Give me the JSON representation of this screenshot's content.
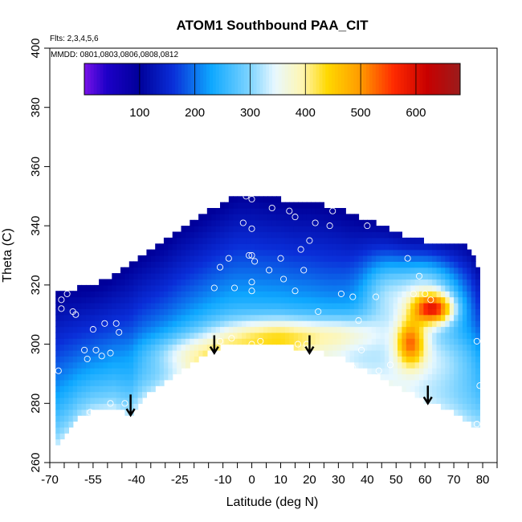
{
  "chart_data": {
    "type": "heatmap",
    "title": "ATOM1 Southbound PAA_CIT",
    "subtitle_flights": "Flts: 2,3,4,5,6",
    "subtitle_dates": "MMDD: 0801,0803,0806,0808,0812",
    "xlabel": "Latitude (deg N)",
    "ylabel": "Theta (C)",
    "xlim": [
      -70,
      85
    ],
    "ylim": [
      260,
      400
    ],
    "x_ticks": [
      -70,
      -55,
      -40,
      -25,
      -10,
      0,
      10,
      20,
      30,
      40,
      50,
      60,
      70,
      80
    ],
    "x_minor_ticks": [
      -65,
      -60,
      -50,
      -45,
      -35,
      -30,
      -20,
      -15,
      -5,
      5,
      15,
      25,
      35,
      45,
      55,
      65,
      75,
      85
    ],
    "y_ticks": [
      260,
      280,
      300,
      320,
      340,
      360,
      380,
      400
    ],
    "colorbar": {
      "range": [
        0,
        680
      ],
      "ticks": [
        100,
        200,
        300,
        400,
        500,
        600
      ],
      "stops": [
        {
          "v": 0,
          "c": "#7a12e8"
        },
        {
          "v": 40,
          "c": "#1d00c8"
        },
        {
          "v": 100,
          "c": "#00009a"
        },
        {
          "v": 160,
          "c": "#0a2ed8"
        },
        {
          "v": 230,
          "c": "#0ea8ff"
        },
        {
          "v": 300,
          "c": "#7fd4ff"
        },
        {
          "v": 345,
          "c": "#e8f8ff"
        },
        {
          "v": 395,
          "c": "#fff6b0"
        },
        {
          "v": 440,
          "c": "#ffd800"
        },
        {
          "v": 500,
          "c": "#ff9a00"
        },
        {
          "v": 560,
          "c": "#ff2a00"
        },
        {
          "v": 620,
          "c": "#c80000"
        },
        {
          "v": 680,
          "c": "#9b1c1c"
        }
      ]
    },
    "surface_boundary": [
      [
        -68,
        266
      ],
      [
        -64,
        270
      ],
      [
        -60,
        275
      ],
      [
        -55,
        278
      ],
      [
        -48,
        279
      ],
      [
        -42,
        276
      ],
      [
        -38,
        282
      ],
      [
        -30,
        287
      ],
      [
        -22,
        293
      ],
      [
        -14,
        298
      ],
      [
        -8,
        300
      ],
      [
        0,
        300
      ],
      [
        10,
        300
      ],
      [
        20,
        298
      ],
      [
        30,
        296
      ],
      [
        40,
        291
      ],
      [
        50,
        286
      ],
      [
        60,
        281
      ],
      [
        70,
        277
      ],
      [
        78,
        272
      ]
    ],
    "tropopause_boundary": [
      [
        -68,
        316
      ],
      [
        -65,
        318
      ],
      [
        -60,
        318
      ],
      [
        -55,
        319
      ],
      [
        -50,
        321
      ],
      [
        -45,
        324
      ],
      [
        -40,
        328
      ],
      [
        -35,
        331
      ],
      [
        -30,
        334
      ],
      [
        -25,
        338
      ],
      [
        -20,
        341
      ],
      [
        -15,
        344
      ],
      [
        -10,
        347
      ],
      [
        -5,
        350
      ],
      [
        0,
        350
      ],
      [
        5,
        349
      ],
      [
        10,
        348
      ],
      [
        15,
        347
      ],
      [
        20,
        347
      ],
      [
        25,
        346
      ],
      [
        30,
        345
      ],
      [
        35,
        343
      ],
      [
        40,
        341
      ],
      [
        45,
        339
      ],
      [
        50,
        337
      ],
      [
        55,
        335
      ],
      [
        60,
        334
      ],
      [
        65,
        333
      ],
      [
        70,
        333
      ],
      [
        75,
        332
      ],
      [
        79,
        324
      ]
    ],
    "features": [
      {
        "x": 63,
        "y": 312,
        "sx": 7,
        "sy": 5,
        "amp": 270
      },
      {
        "x": 55,
        "y": 301,
        "sx": 5,
        "sy": 8,
        "amp": 210
      },
      {
        "x": 60,
        "y": 318,
        "sx": 13,
        "sy": 12,
        "amp": 180
      },
      {
        "x": 62,
        "y": 296,
        "sx": 17,
        "sy": 11,
        "amp": 90
      },
      {
        "x": 10,
        "y": 303,
        "sx": 22,
        "sy": 6,
        "amp": 130
      },
      {
        "x": -20,
        "y": 297,
        "sx": 16,
        "sy": 6,
        "amp": 80
      },
      {
        "x": 45,
        "y": 318,
        "sx": 8,
        "sy": 14,
        "amp": 80
      },
      {
        "x": 35,
        "y": 304,
        "sx": 12,
        "sy": 6,
        "amp": 60
      }
    ],
    "obs_points": [
      [
        -67,
        291
      ],
      [
        -66,
        312
      ],
      [
        -66,
        315
      ],
      [
        -64,
        317
      ],
      [
        -62,
        311
      ],
      [
        -61,
        310
      ],
      [
        -58,
        298
      ],
      [
        -57,
        295
      ],
      [
        -55,
        305
      ],
      [
        -54,
        298
      ],
      [
        -52,
        296
      ],
      [
        -51,
        307
      ],
      [
        -49,
        297
      ],
      [
        -47,
        307
      ],
      [
        -46,
        304
      ],
      [
        -56,
        277
      ],
      [
        -49,
        280
      ],
      [
        -44,
        280
      ],
      [
        -7,
        302
      ],
      [
        -11,
        301
      ],
      [
        -13,
        319
      ],
      [
        -11,
        326
      ],
      [
        -8,
        329
      ],
      [
        -6,
        319
      ],
      [
        -3,
        341
      ],
      [
        -2,
        350
      ],
      [
        0,
        349
      ],
      [
        0,
        339
      ],
      [
        -1,
        330
      ],
      [
        0,
        330
      ],
      [
        1,
        328
      ],
      [
        0,
        321
      ],
      [
        0,
        318
      ],
      [
        0,
        300
      ],
      [
        3,
        301
      ],
      [
        6,
        325
      ],
      [
        7,
        346
      ],
      [
        10,
        329
      ],
      [
        11,
        322
      ],
      [
        13,
        345
      ],
      [
        15,
        318
      ],
      [
        16,
        300
      ],
      [
        15,
        343
      ],
      [
        17,
        332
      ],
      [
        18,
        325
      ],
      [
        19,
        300
      ],
      [
        20,
        335
      ],
      [
        22,
        341
      ],
      [
        23,
        311
      ],
      [
        27,
        340
      ],
      [
        28,
        345
      ],
      [
        31,
        317
      ],
      [
        35,
        316
      ],
      [
        35,
        292
      ],
      [
        37,
        308
      ],
      [
        38,
        298
      ],
      [
        40,
        340
      ],
      [
        43,
        316
      ],
      [
        44,
        291
      ],
      [
        48,
        293
      ],
      [
        54,
        329
      ],
      [
        56,
        317
      ],
      [
        58,
        323
      ],
      [
        60,
        317
      ],
      [
        62,
        315
      ],
      [
        79,
        286
      ],
      [
        78,
        301
      ],
      [
        78,
        273
      ]
    ],
    "arrows": [
      {
        "x": -42,
        "y_top": 283,
        "y_bottom": 276
      },
      {
        "x": -13,
        "y_top": 303,
        "y_bottom": 297
      },
      {
        "x": 20,
        "y_top": 303,
        "y_bottom": 297
      },
      {
        "x": 61,
        "y_top": 286,
        "y_bottom": 280
      }
    ]
  }
}
